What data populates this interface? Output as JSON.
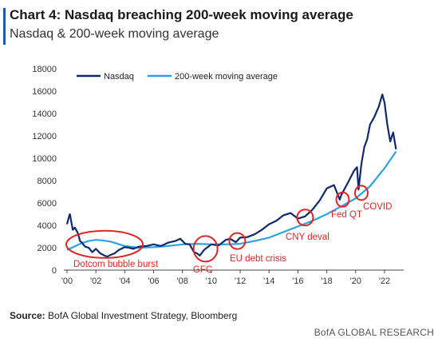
{
  "header": {
    "title": "Chart 4: Nasdaq breaching 200-week moving average",
    "subtitle": "Nasdaq & 200-week moving average"
  },
  "footer": {
    "source_label": "Source:",
    "source_text": " BofA Global Investment Strategy, Bloomberg",
    "brand": "BofA GLOBAL RESEARCH"
  },
  "colors": {
    "nasdaq": "#0f2a6b",
    "ma200": "#2ba3e0",
    "annotation": "#e02424",
    "accent": "#1f5aa8"
  },
  "chart_data": {
    "type": "line",
    "title": "Chart 4: Nasdaq breaching 200-week moving average",
    "subtitle": "Nasdaq & 200-week moving average",
    "xlabel": "",
    "ylabel": "",
    "xlim": [
      2000,
      2023
    ],
    "ylim": [
      0,
      18000
    ],
    "yticks": [
      0,
      2000,
      4000,
      6000,
      8000,
      10000,
      12000,
      14000,
      16000,
      18000
    ],
    "xticks": [
      2000,
      2002,
      2004,
      2006,
      2008,
      2010,
      2012,
      2014,
      2016,
      2018,
      2020,
      2022
    ],
    "xtick_labels": [
      "'00",
      "'02",
      "'04",
      "'06",
      "'08",
      "'10",
      "'12",
      "'14",
      "'16",
      "'18",
      "'20",
      "'22"
    ],
    "grid": false,
    "legend_position": "top",
    "series": [
      {
        "name": "Nasdaq",
        "x": [
          2000.0,
          2000.1,
          2000.2,
          2000.3,
          2000.4,
          2000.55,
          2000.75,
          2000.9,
          2001.0,
          2001.25,
          2001.5,
          2001.75,
          2002.0,
          2002.3,
          2002.6,
          2002.8,
          2003.0,
          2003.3,
          2003.6,
          2004.0,
          2004.3,
          2004.6,
          2005.0,
          2005.5,
          2006.0,
          2006.5,
          2007.0,
          2007.5,
          2007.85,
          2008.2,
          2008.5,
          2008.8,
          2009.0,
          2009.2,
          2009.5,
          2010.0,
          2010.5,
          2011.0,
          2011.3,
          2011.7,
          2012.0,
          2012.5,
          2013.0,
          2013.5,
          2014.0,
          2014.5,
          2015.0,
          2015.5,
          2016.0,
          2016.5,
          2017.0,
          2017.5,
          2018.0,
          2018.5,
          2018.9,
          2019.0,
          2019.5,
          2019.9,
          2020.1,
          2020.2,
          2020.4,
          2020.6,
          2020.8,
          2021.0,
          2021.3,
          2021.6,
          2021.85,
          2022.0,
          2022.2,
          2022.4,
          2022.6,
          2022.8
        ],
        "y": [
          4100,
          4600,
          5000,
          4300,
          3600,
          3800,
          3300,
          2600,
          2500,
          2100,
          2000,
          1600,
          1900,
          1500,
          1300,
          1200,
          1350,
          1500,
          1800,
          2050,
          2000,
          1900,
          2100,
          2150,
          2300,
          2150,
          2450,
          2600,
          2800,
          2350,
          2300,
          1600,
          1500,
          1300,
          1800,
          2300,
          2200,
          2700,
          2800,
          2500,
          2900,
          2950,
          3200,
          3600,
          4100,
          4400,
          4900,
          5100,
          4600,
          4800,
          5400,
          6200,
          7300,
          7600,
          6300,
          6700,
          7900,
          8900,
          9200,
          7200,
          9500,
          11000,
          11700,
          13000,
          13700,
          14600,
          15700,
          15000,
          13000,
          11500,
          12300,
          10800
        ]
      },
      {
        "name": "200-week moving average",
        "x": [
          2000.0,
          2000.5,
          2001.0,
          2001.5,
          2002.0,
          2002.5,
          2003.0,
          2003.5,
          2004.0,
          2005.0,
          2006.0,
          2007.0,
          2008.0,
          2009.0,
          2010.0,
          2011.0,
          2012.0,
          2013.0,
          2014.0,
          2015.0,
          2016.0,
          2017.0,
          2018.0,
          2019.0,
          2020.0,
          2021.0,
          2022.0,
          2022.8
        ],
        "y": [
          1800,
          2100,
          2400,
          2600,
          2700,
          2650,
          2550,
          2350,
          2150,
          2000,
          2050,
          2150,
          2300,
          2350,
          2300,
          2300,
          2350,
          2600,
          2900,
          3400,
          3900,
          4400,
          5000,
          5700,
          6400,
          7500,
          9100,
          10600
        ]
      }
    ],
    "annotations": [
      {
        "text": "Dotcom bubble burst",
        "x": 2002.6,
        "y": 2300
      },
      {
        "text": "GFC",
        "x": 2009.6,
        "y": 1900
      },
      {
        "text": "EU debt crisis",
        "x": 2011.8,
        "y": 2600
      },
      {
        "text": "CNY deval",
        "x": 2016.5,
        "y": 4700
      },
      {
        "text": "Fed QT",
        "x": 2019.1,
        "y": 6300
      },
      {
        "text": "COVID",
        "x": 2020.4,
        "y": 6900
      }
    ]
  }
}
